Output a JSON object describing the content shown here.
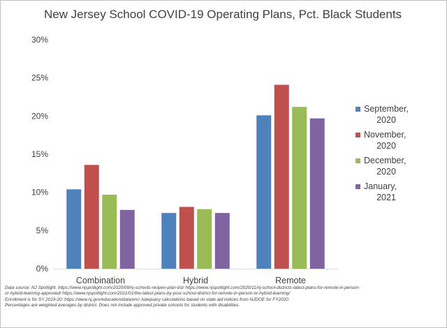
{
  "chart_data": {
    "type": "bar",
    "title": "New Jersey School COVID-19 Operating Plans, Pct. Black Students",
    "categories": [
      "Combination",
      "Hybrid",
      "Remote"
    ],
    "series": [
      {
        "name": "September, 2020",
        "legend_lines": [
          "September,",
          "2020"
        ],
        "color": "#4f81bd",
        "values": [
          10.4,
          7.3,
          20.1
        ]
      },
      {
        "name": "November, 2020",
        "legend_lines": [
          "November,",
          "2020"
        ],
        "color": "#c0504d",
        "values": [
          13.6,
          8.1,
          24.1
        ]
      },
      {
        "name": "December, 2020",
        "legend_lines": [
          "December,",
          "2020"
        ],
        "color": "#9bbb59",
        "values": [
          9.7,
          7.8,
          21.2
        ]
      },
      {
        "name": "January, 2021",
        "legend_lines": [
          "January,",
          "2021"
        ],
        "color": "#8064a2",
        "values": [
          7.7,
          7.3,
          19.7
        ]
      }
    ],
    "ylim": [
      0,
      30
    ],
    "yticks": [
      0,
      5,
      10,
      15,
      20,
      25,
      30
    ],
    "ytick_labels": [
      "0%",
      "5%",
      "10%",
      "15%",
      "20%",
      "25%",
      "30%"
    ],
    "xlabel": "",
    "ylabel": "",
    "grid": false,
    "legend_position": "right"
  },
  "source_notes": [
    "Data source: NJ Spotlight. https://www.njspotlight.com/2020/09/nj-schools-reopen-plan-list/  https://www.njspotlight.com/2020/11/nj-school-districts-latest-plans-for-remote-in-person-",
    "or-hybrid-learning-approved/  https://www.njspotlight.com/2021/01/the-latest-plans-by-your-school-district-for-remote-in-person-or-hybrid-learning/",
    "Enrollment is for SY 2019-20: https://www.nj.gov/education/data/enr/ Adequacy calculations based on state aid notices from NJDOE for FY2020.",
    "Percentages are weighted averages by district. Does not include approved private schools for students with disabilities."
  ]
}
